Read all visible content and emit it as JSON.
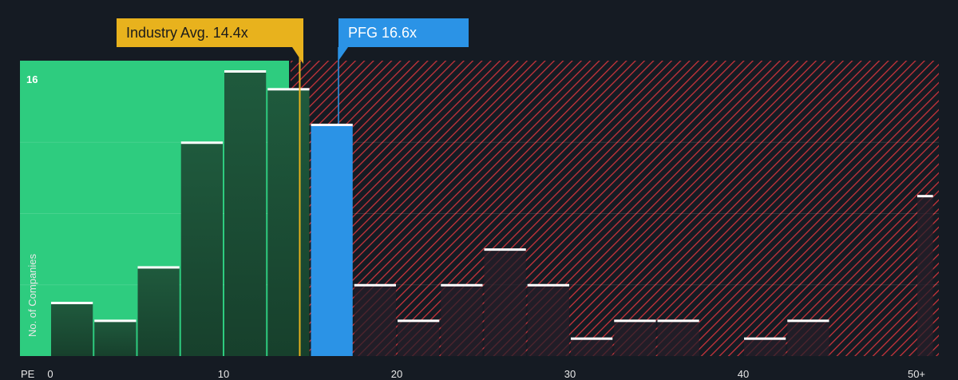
{
  "chart_data": {
    "type": "bar",
    "x_axis_title": "PE",
    "y_axis_title": "No. of Companies",
    "x_ticks": [
      {
        "value": 0,
        "label": "0"
      },
      {
        "value": 10,
        "label": "10"
      },
      {
        "value": 20,
        "label": "20"
      },
      {
        "value": 30,
        "label": "30"
      },
      {
        "value": 40,
        "label": "40"
      },
      {
        "value": 50,
        "label": "50+"
      }
    ],
    "y_max_label": "16",
    "ylim": [
      0,
      16
    ],
    "xlim": [
      0,
      51
    ],
    "bin_width": 2.5,
    "bins": [
      {
        "x0": 0,
        "x1": 2.5,
        "count": 3
      },
      {
        "x0": 2.5,
        "x1": 5,
        "count": 2
      },
      {
        "x0": 5,
        "x1": 7.5,
        "count": 5
      },
      {
        "x0": 7.5,
        "x1": 10,
        "count": 12
      },
      {
        "x0": 10,
        "x1": 12.5,
        "count": 16
      },
      {
        "x0": 12.5,
        "x1": 15,
        "count": 15
      },
      {
        "x0": 15,
        "x1": 17.5,
        "count": 13,
        "highlight": true
      },
      {
        "x0": 17.5,
        "x1": 20,
        "count": 4
      },
      {
        "x0": 20,
        "x1": 22.5,
        "count": 2
      },
      {
        "x0": 22.5,
        "x1": 25,
        "count": 4
      },
      {
        "x0": 25,
        "x1": 27.5,
        "count": 6
      },
      {
        "x0": 27.5,
        "x1": 30,
        "count": 4
      },
      {
        "x0": 30,
        "x1": 32.5,
        "count": 1
      },
      {
        "x0": 32.5,
        "x1": 35,
        "count": 2
      },
      {
        "x0": 35,
        "x1": 37.5,
        "count": 2
      },
      {
        "x0": 37.5,
        "x1": 40,
        "count": 0
      },
      {
        "x0": 40,
        "x1": 42.5,
        "count": 1
      },
      {
        "x0": 42.5,
        "x1": 45,
        "count": 2
      },
      {
        "x0": 45,
        "x1": 47.5,
        "count": 0
      },
      {
        "x0": 47.5,
        "x1": 50,
        "count": 0
      },
      {
        "x0": 50,
        "x1": 51,
        "count": 9
      }
    ],
    "industry_avg": {
      "value": 14.4,
      "label": "Industry Avg. 14.4x"
    },
    "company": {
      "value": 16.6,
      "label": "PFG 16.6x"
    },
    "colors": {
      "background": "#151b23",
      "fair_zone": "#2ecc7f",
      "over_zone_stripe": "#c9343b",
      "bar_dark": "#1e4a35",
      "bar_over": "#251f29",
      "company_bar": "#2b93e6",
      "industry": "#e8b21d",
      "bar_cap": "#ffffff"
    }
  }
}
